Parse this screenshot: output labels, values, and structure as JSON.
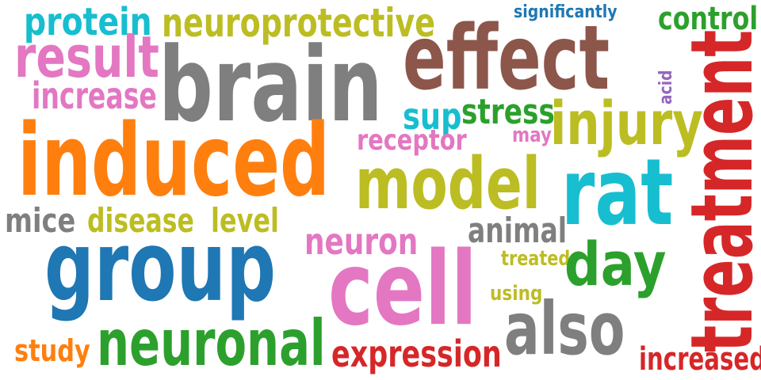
{
  "words": [
    {
      "text": "protein",
      "color": "#17becf"
    },
    {
      "text": "neuroprotective",
      "color": "#bcbd22"
    },
    {
      "text": "significantly",
      "color": "#1f77b4"
    },
    {
      "text": "control",
      "color": "#2ca02c"
    },
    {
      "text": "result",
      "color": "#e377c2"
    },
    {
      "text": "brain",
      "color": "#7f7f7f"
    },
    {
      "text": "effect",
      "color": "#8c564b"
    },
    {
      "text": "increase",
      "color": "#e377c2"
    },
    {
      "text": "acid",
      "color": "#9467bd"
    },
    {
      "text": "treatment",
      "color": "#d62728"
    },
    {
      "text": "sup",
      "color": "#17becf"
    },
    {
      "text": "stress",
      "color": "#2ca02c"
    },
    {
      "text": "injury",
      "color": "#bcbd22"
    },
    {
      "text": "may",
      "color": "#e377c2"
    },
    {
      "text": "induced",
      "color": "#ff7f0e"
    },
    {
      "text": "receptor",
      "color": "#e377c2"
    },
    {
      "text": "model",
      "color": "#bcbd22"
    },
    {
      "text": "rat",
      "color": "#17becf"
    },
    {
      "text": "mice",
      "color": "#7f7f7f"
    },
    {
      "text": "disease",
      "color": "#bcbd22"
    },
    {
      "text": "level",
      "color": "#bcbd22"
    },
    {
      "text": "animal",
      "color": "#7f7f7f"
    },
    {
      "text": "neuron",
      "color": "#e377c2"
    },
    {
      "text": "group",
      "color": "#1f77b4"
    },
    {
      "text": "treated",
      "color": "#bcbd22"
    },
    {
      "text": "day",
      "color": "#2ca02c"
    },
    {
      "text": "cell",
      "color": "#e377c2"
    },
    {
      "text": "using",
      "color": "#bcbd22"
    },
    {
      "text": "also",
      "color": "#7f7f7f"
    },
    {
      "text": "study",
      "color": "#ff7f0e"
    },
    {
      "text": "neuronal",
      "color": "#2ca02c"
    },
    {
      "text": "expression",
      "color": "#d62728"
    },
    {
      "text": "increased",
      "color": "#d62728"
    }
  ]
}
